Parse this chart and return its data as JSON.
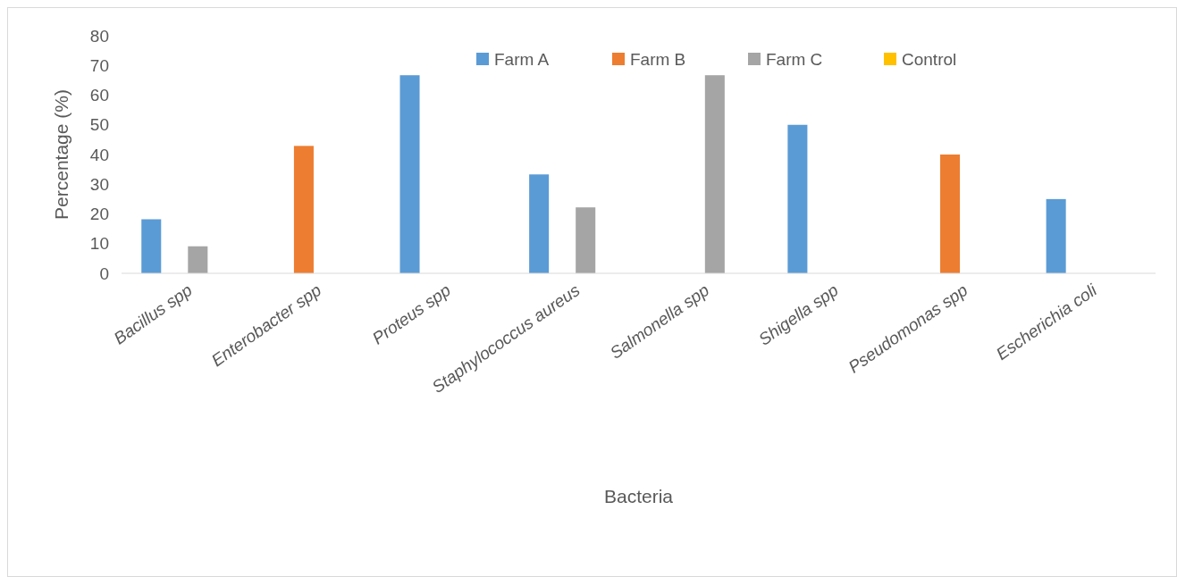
{
  "chart_data": {
    "type": "bar",
    "xlabel": "Bacteria",
    "ylabel": "Percentage (%)",
    "categories": [
      "Bacillus spp",
      "Enterobacter spp",
      "Proteus spp",
      "Staphylococcus aureus",
      "Salmonella spp",
      "Shigella spp",
      "Pseudomonas spp",
      "Escherichia coli"
    ],
    "series": [
      {
        "name": "Farm A",
        "color": "#5b9bd5",
        "values": [
          18.2,
          0,
          66.7,
          33.3,
          0,
          50,
          0,
          25
        ]
      },
      {
        "name": "Farm B",
        "color": "#ed7d31",
        "values": [
          0,
          42.9,
          0,
          0,
          0,
          0,
          40,
          0
        ]
      },
      {
        "name": "Farm C",
        "color": "#a5a5a5",
        "values": [
          9.1,
          0,
          0,
          22.2,
          66.7,
          0,
          0,
          0
        ]
      },
      {
        "name": "Control",
        "color": "#ffc000",
        "values": [
          0,
          0,
          0,
          0,
          0,
          0,
          0,
          0
        ]
      }
    ],
    "ylim": [
      0,
      80
    ],
    "yticks": [
      0,
      10,
      20,
      30,
      40,
      50,
      60,
      70,
      80
    ],
    "grid": false,
    "legend": "top right"
  }
}
